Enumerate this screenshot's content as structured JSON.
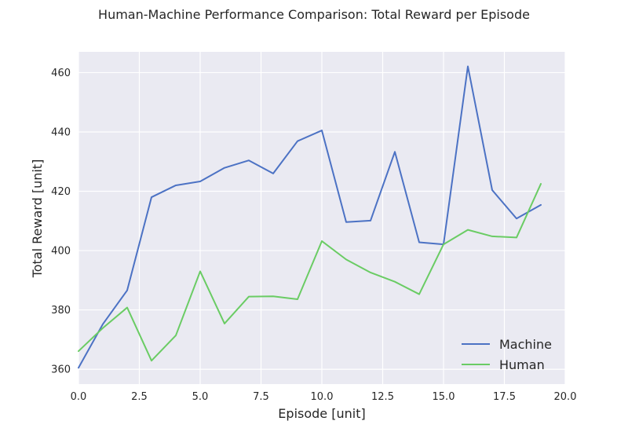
{
  "chart_data": {
    "type": "line",
    "title": "Human-Machine Performance Comparison: Total Reward per Episode",
    "xlabel": "Episode [unit]",
    "ylabel": "Total Reward [unit]",
    "xlim": [
      0,
      20
    ],
    "ylim": [
      355,
      467
    ],
    "xticks": [
      "0.0",
      "2.5",
      "5.0",
      "7.5",
      "10.0",
      "12.5",
      "15.0",
      "17.5",
      "20.0"
    ],
    "yticks": [
      "360",
      "380",
      "400",
      "420",
      "440",
      "460"
    ],
    "grid": true,
    "legend_position": "lower right",
    "x": [
      0,
      1,
      2,
      3,
      4,
      5,
      6,
      7,
      8,
      9,
      10,
      11,
      12,
      13,
      14,
      15,
      16,
      17,
      18,
      19
    ],
    "series": [
      {
        "name": "Machine",
        "color": "#4c72c4",
        "values": [
          360.5,
          375.2,
          386.6,
          418.0,
          422.0,
          423.3,
          427.9,
          430.4,
          426.0,
          436.9,
          440.5,
          409.6,
          410.1,
          433.3,
          402.8,
          402.1,
          462.1,
          420.4,
          410.8,
          415.4
        ]
      },
      {
        "name": "Human",
        "color": "#6acc64",
        "values": [
          366.1,
          373.9,
          380.8,
          362.9,
          371.4,
          393.0,
          375.4,
          384.5,
          384.6,
          383.6,
          403.2,
          397.0,
          392.6,
          389.5,
          385.3,
          402.1,
          407.0,
          404.8,
          404.4,
          422.5
        ]
      }
    ]
  }
}
